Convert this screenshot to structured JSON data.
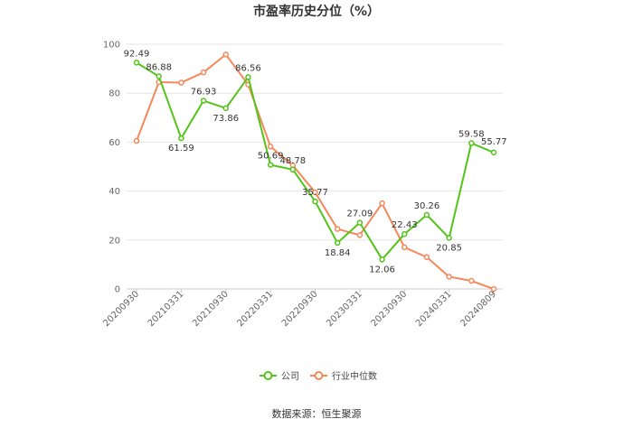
{
  "chart_data": {
    "type": "line",
    "title": "市盈率历史分位（%）",
    "ylim": [
      0,
      100
    ],
    "yticks": [
      0,
      20,
      40,
      60,
      80,
      100
    ],
    "x": [
      "20200930",
      "20201231",
      "20210331",
      "20210630",
      "20210930",
      "20211231",
      "20220331",
      "20220630",
      "20220930",
      "20221230",
      "20230331",
      "20230630",
      "20230930",
      "20231229",
      "20240331",
      "20240630",
      "20240809"
    ],
    "xtick_labels": [
      "20200930",
      "20210331",
      "20210930",
      "20220331",
      "20220930",
      "20230331",
      "20230930",
      "20240331",
      "20240809"
    ],
    "series": [
      {
        "name": "公司",
        "color": "#52c41a",
        "values": [
          92.49,
          86.88,
          61.59,
          76.93,
          73.86,
          86.56,
          50.69,
          48.78,
          35.77,
          18.84,
          27.09,
          12.06,
          22.43,
          30.26,
          20.85,
          59.58,
          55.77
        ],
        "labels": [
          "92.49",
          "86.88",
          "61.59",
          "76.93",
          "73.86",
          "86.56",
          "50.69",
          "48.78",
          "35.77",
          "18.84",
          "27.09",
          "12.06",
          "22.43",
          "30.26",
          "20.85",
          "59.58",
          "55.77"
        ]
      },
      {
        "name": "行业中位数",
        "color": "#f5885a",
        "values": [
          60.5,
          84.5,
          84.3,
          88.5,
          95.8,
          83.5,
          58.2,
          50.5,
          39.5,
          24.5,
          22.0,
          35.0,
          17.0,
          13.0,
          5.0,
          3.3,
          0.0
        ]
      }
    ],
    "legend_position": "bottom-center",
    "grid": true
  },
  "source": "数据来源：恒生聚源"
}
